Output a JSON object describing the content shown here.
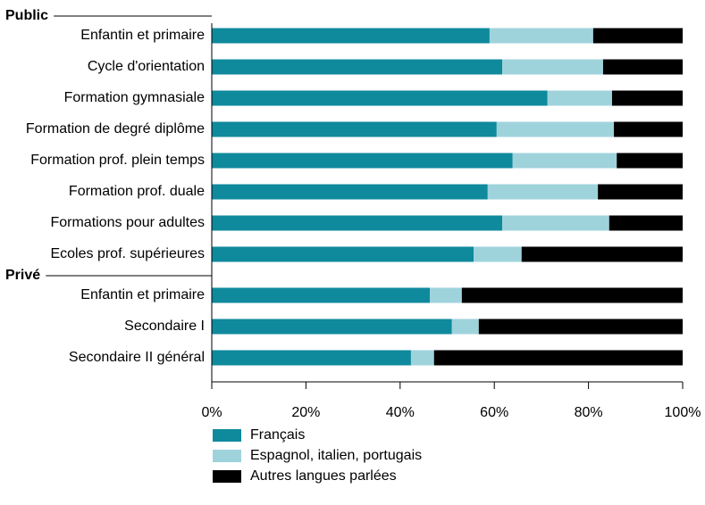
{
  "chart_data": {
    "type": "bar",
    "stacked": true,
    "orientation": "horizontal",
    "groups": [
      {
        "name": "Public",
        "categories": [
          "Enfantin et primaire",
          "Cycle d'orientation",
          "Formation gymnasiale",
          "Formation de degré diplôme",
          "Formation prof. plein temps",
          "Formation prof. duale",
          "Formations pour adultes",
          "Ecoles prof. supérieures"
        ]
      },
      {
        "name": "Privé",
        "categories": [
          "Enfantin et primaire",
          "Secondaire I",
          "Secondaire II général"
        ]
      }
    ],
    "series": [
      {
        "name": "Français",
        "color": "#0f8a9d",
        "values": [
          59.0,
          61.7,
          71.3,
          60.5,
          63.9,
          58.6,
          61.7,
          55.6,
          46.3,
          51.0,
          42.3
        ]
      },
      {
        "name": "Espagnol, italien, portugais",
        "color": "#9fd3dc",
        "values": [
          22.0,
          21.4,
          13.7,
          24.9,
          22.1,
          23.4,
          22.7,
          10.2,
          6.8,
          5.7,
          4.9
        ]
      },
      {
        "name": "Autres langues parlées",
        "color": "#000000",
        "values": [
          19.0,
          16.9,
          15.0,
          14.6,
          14.0,
          18.0,
          15.6,
          34.2,
          46.9,
          43.3,
          52.8
        ]
      }
    ],
    "xlim": [
      0,
      100
    ],
    "xticks": [
      {
        "value": 0,
        "label": "0%"
      },
      {
        "value": 20,
        "label": "20%"
      },
      {
        "value": 40,
        "label": "40%"
      },
      {
        "value": 60,
        "label": "60%"
      },
      {
        "value": 80,
        "label": "80%"
      },
      {
        "value": 100,
        "label": "100%"
      }
    ]
  }
}
